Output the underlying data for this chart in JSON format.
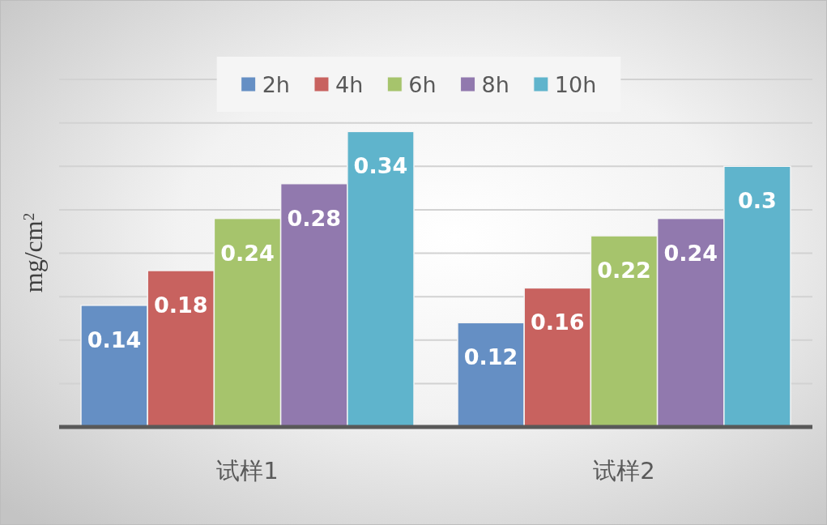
{
  "chart_data": {
    "type": "bar",
    "categories": [
      "试样1",
      "试样2"
    ],
    "series": [
      {
        "name": "2h",
        "color": "#658fc4",
        "values": [
          0.14,
          0.12
        ]
      },
      {
        "name": "4h",
        "color": "#c8625f",
        "values": [
          0.18,
          0.16
        ]
      },
      {
        "name": "6h",
        "color": "#a6c46c",
        "values": [
          0.24,
          0.22
        ]
      },
      {
        "name": "8h",
        "color": "#9179ae",
        "values": [
          0.28,
          0.24
        ]
      },
      {
        "name": "10h",
        "color": "#5fb4cc",
        "values": [
          0.34,
          0.3
        ]
      }
    ],
    "ylabel": "mg/cm$^{2}$",
    "ylim": [
      0,
      0.4
    ],
    "yticks": [
      {
        "value": 0,
        "label": null
      },
      {
        "value": 0.05,
        "label": null
      },
      {
        "value": 0.1,
        "label": null
      },
      {
        "value": 0.15,
        "label": null
      },
      {
        "value": 0.2,
        "label": null
      },
      {
        "value": 0.25,
        "label": null
      },
      {
        "value": 0.3,
        "label": null
      },
      {
        "value": 0.35,
        "label": null
      },
      {
        "value": 0.4,
        "label": null
      }
    ],
    "grid": "y",
    "legend": "top",
    "data_labels": true,
    "tick_labels": "x"
  }
}
